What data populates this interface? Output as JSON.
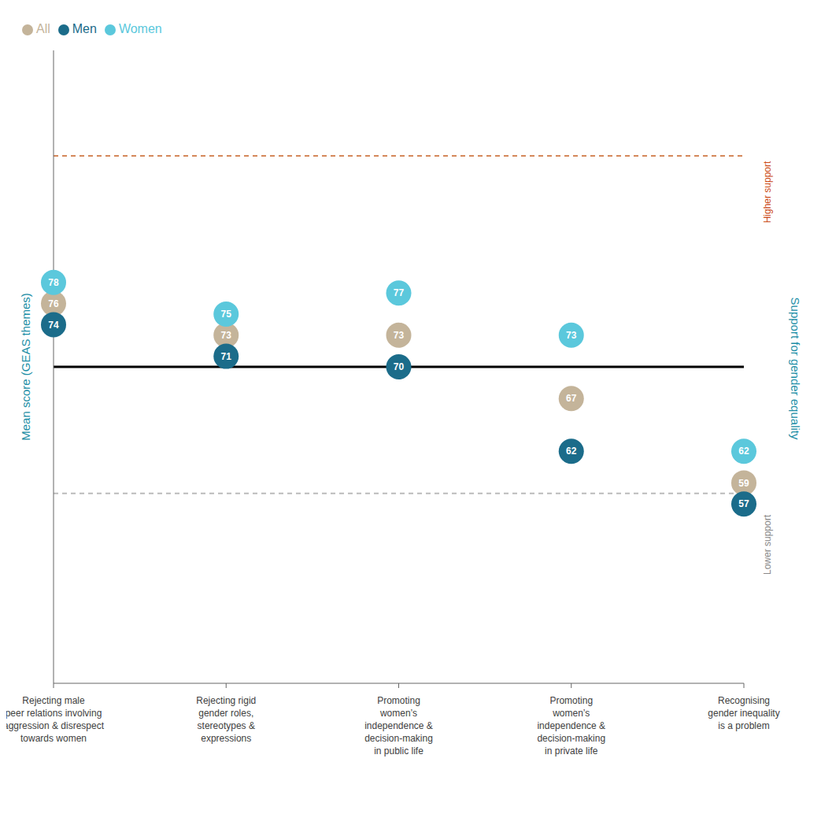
{
  "chart_data": {
    "type": "scatter",
    "ylabel": "Mean score (GEAS themes)",
    "categories": [
      "Rejecting male\npeer relations involving\naggression & disrespect\ntowards women",
      "Rejecting rigid\ngender roles,\nstereotypes &\nexpressions",
      "Promoting\nwomen’s\nindependence &\ndecision-making\nin public life",
      "Promoting\nwomen’s\nindependence &\ndecision-making\nin private life",
      "Recognising\ngender inequality\nis a problem"
    ],
    "series": [
      {
        "name": "All",
        "color": "#C4B49A",
        "values": [
          76,
          73,
          73,
          67,
          59
        ]
      },
      {
        "name": "Men",
        "color": "#1B6C8A",
        "values": [
          74,
          71,
          70,
          62,
          57
        ]
      },
      {
        "name": "Women",
        "color": "#5BC8DC",
        "values": [
          78,
          75,
          77,
          73,
          62
        ]
      }
    ],
    "ylim": [
      40,
      100
    ],
    "yticks": [],
    "tick_labels": "x",
    "data_labels": true,
    "legend": "top left",
    "reference_lines": [
      {
        "y": 90,
        "color": "#D4875A",
        "line_style": "dashed"
      },
      {
        "y": 70,
        "color": "#000000",
        "line_style": "solid"
      },
      {
        "y": 58,
        "color": "#BBBBBB",
        "line_style": "dashed"
      }
    ],
    "annotations": [
      {
        "text": "Higher support",
        "color": "#CC4A14"
      },
      {
        "text": "Lower support",
        "color": "#888888"
      },
      {
        "text": "Support for gender equality",
        "color": "#1B8EA6"
      }
    ]
  }
}
